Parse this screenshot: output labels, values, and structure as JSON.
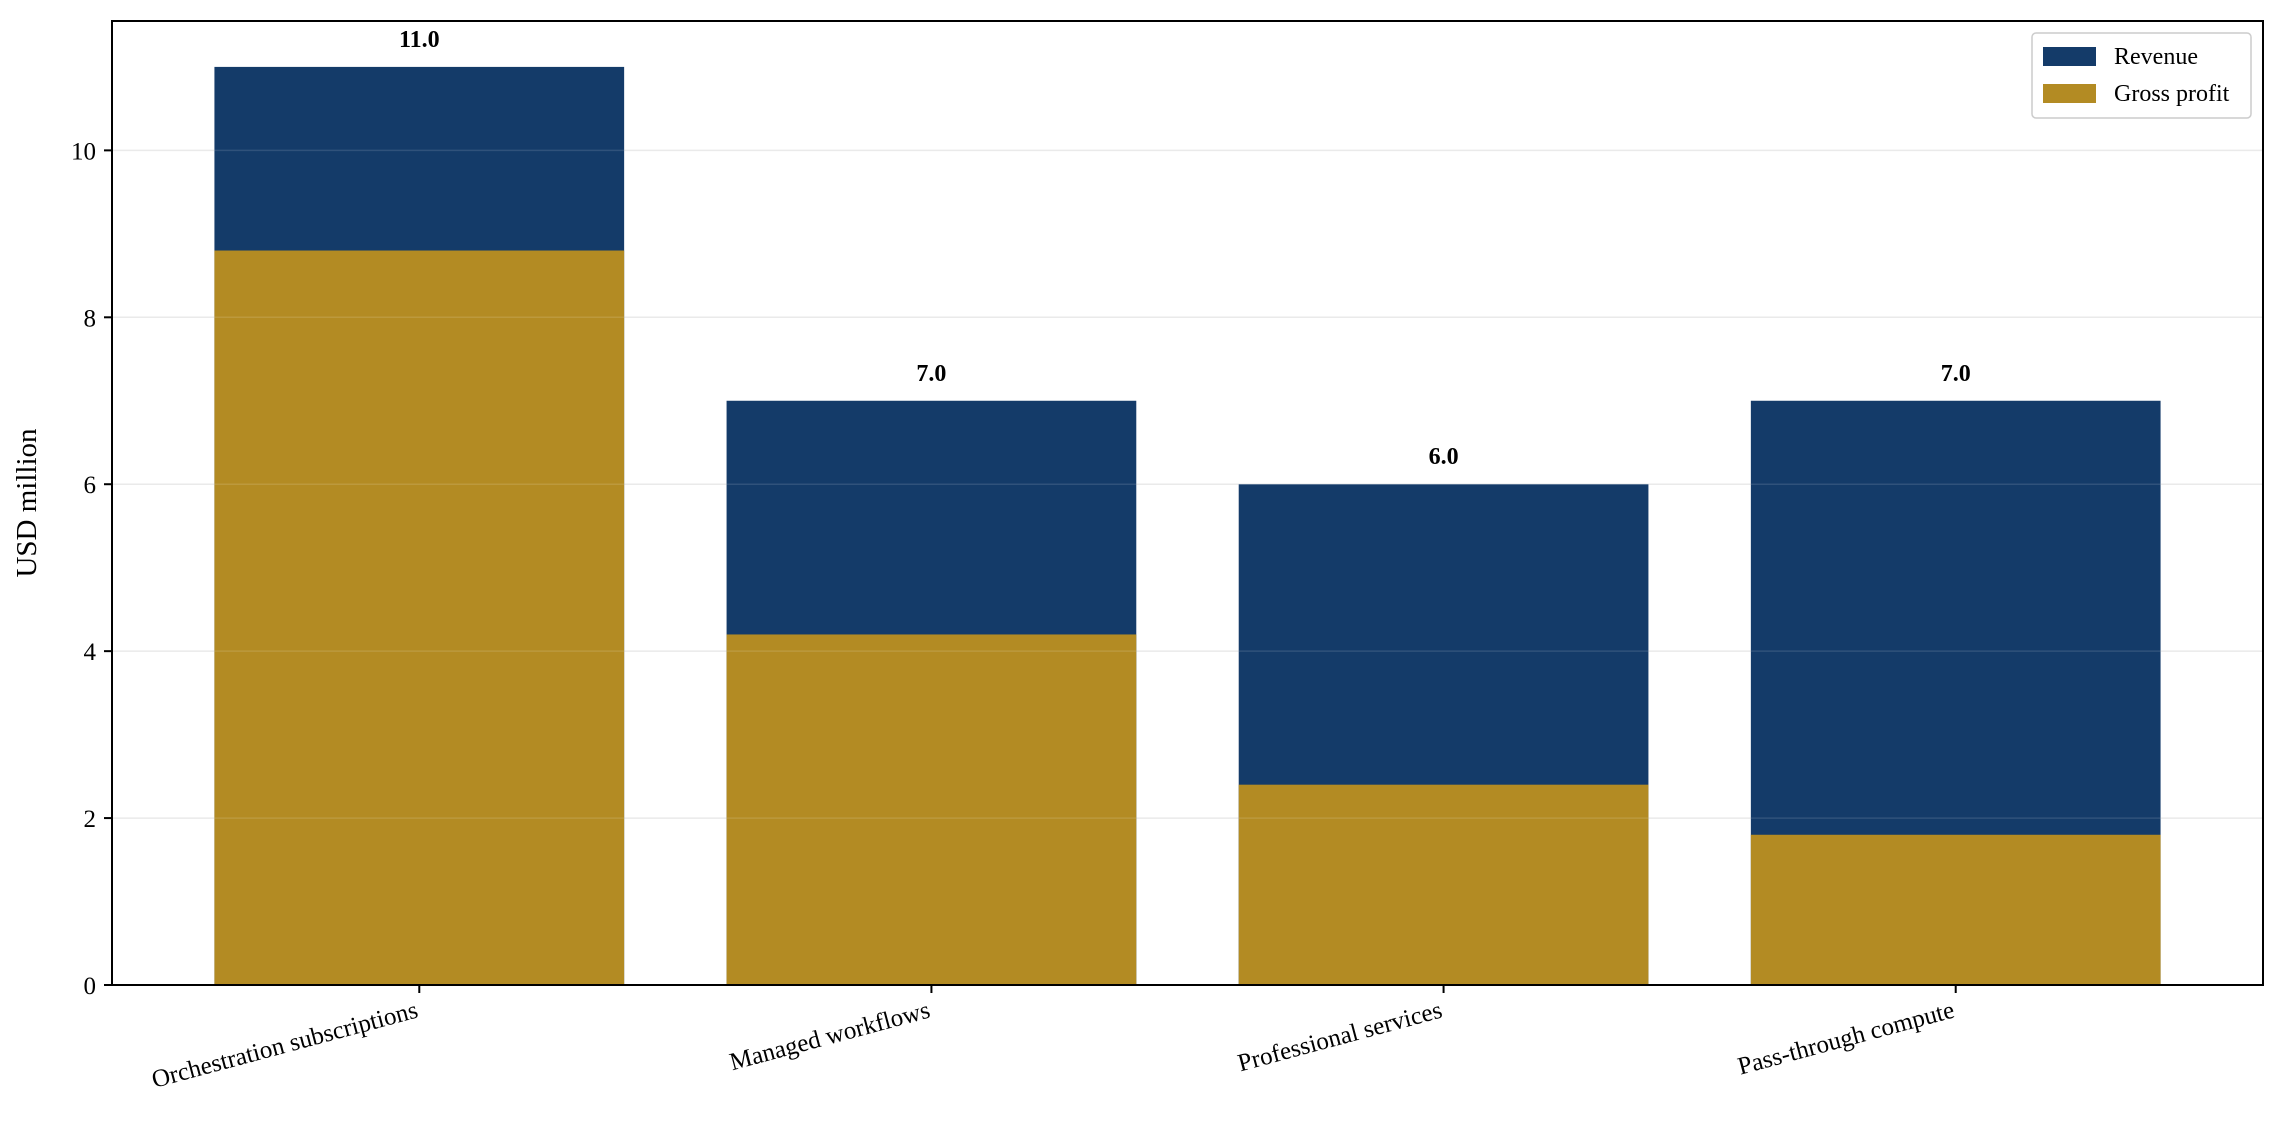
{
  "chart_data": {
    "type": "bar",
    "stacking": "overlay",
    "categories": [
      "Orchestration subscriptions",
      "Managed workflows",
      "Professional services",
      "Pass-through compute"
    ],
    "series": [
      {
        "name": "Revenue",
        "values": [
          11.0,
          7.0,
          6.0,
          7.0
        ],
        "color": "#143b69"
      },
      {
        "name": "Gross profit",
        "values": [
          8.8,
          4.2,
          2.4,
          1.8
        ],
        "color": "#b38b23"
      }
    ],
    "data_labels": [
      "11.0",
      "7.0",
      "6.0",
      "7.0"
    ],
    "title": "",
    "xlabel": "",
    "ylabel": "USD million",
    "ylim": [
      0,
      11.55
    ],
    "yticks": [
      0,
      2,
      4,
      6,
      8,
      10
    ],
    "grid": "horizontal",
    "legend_position": "top-right",
    "xtick_rotation_deg": 15
  },
  "colors": {
    "axis": "#000000",
    "grid": "#e8e8e8",
    "text": "#000000"
  }
}
